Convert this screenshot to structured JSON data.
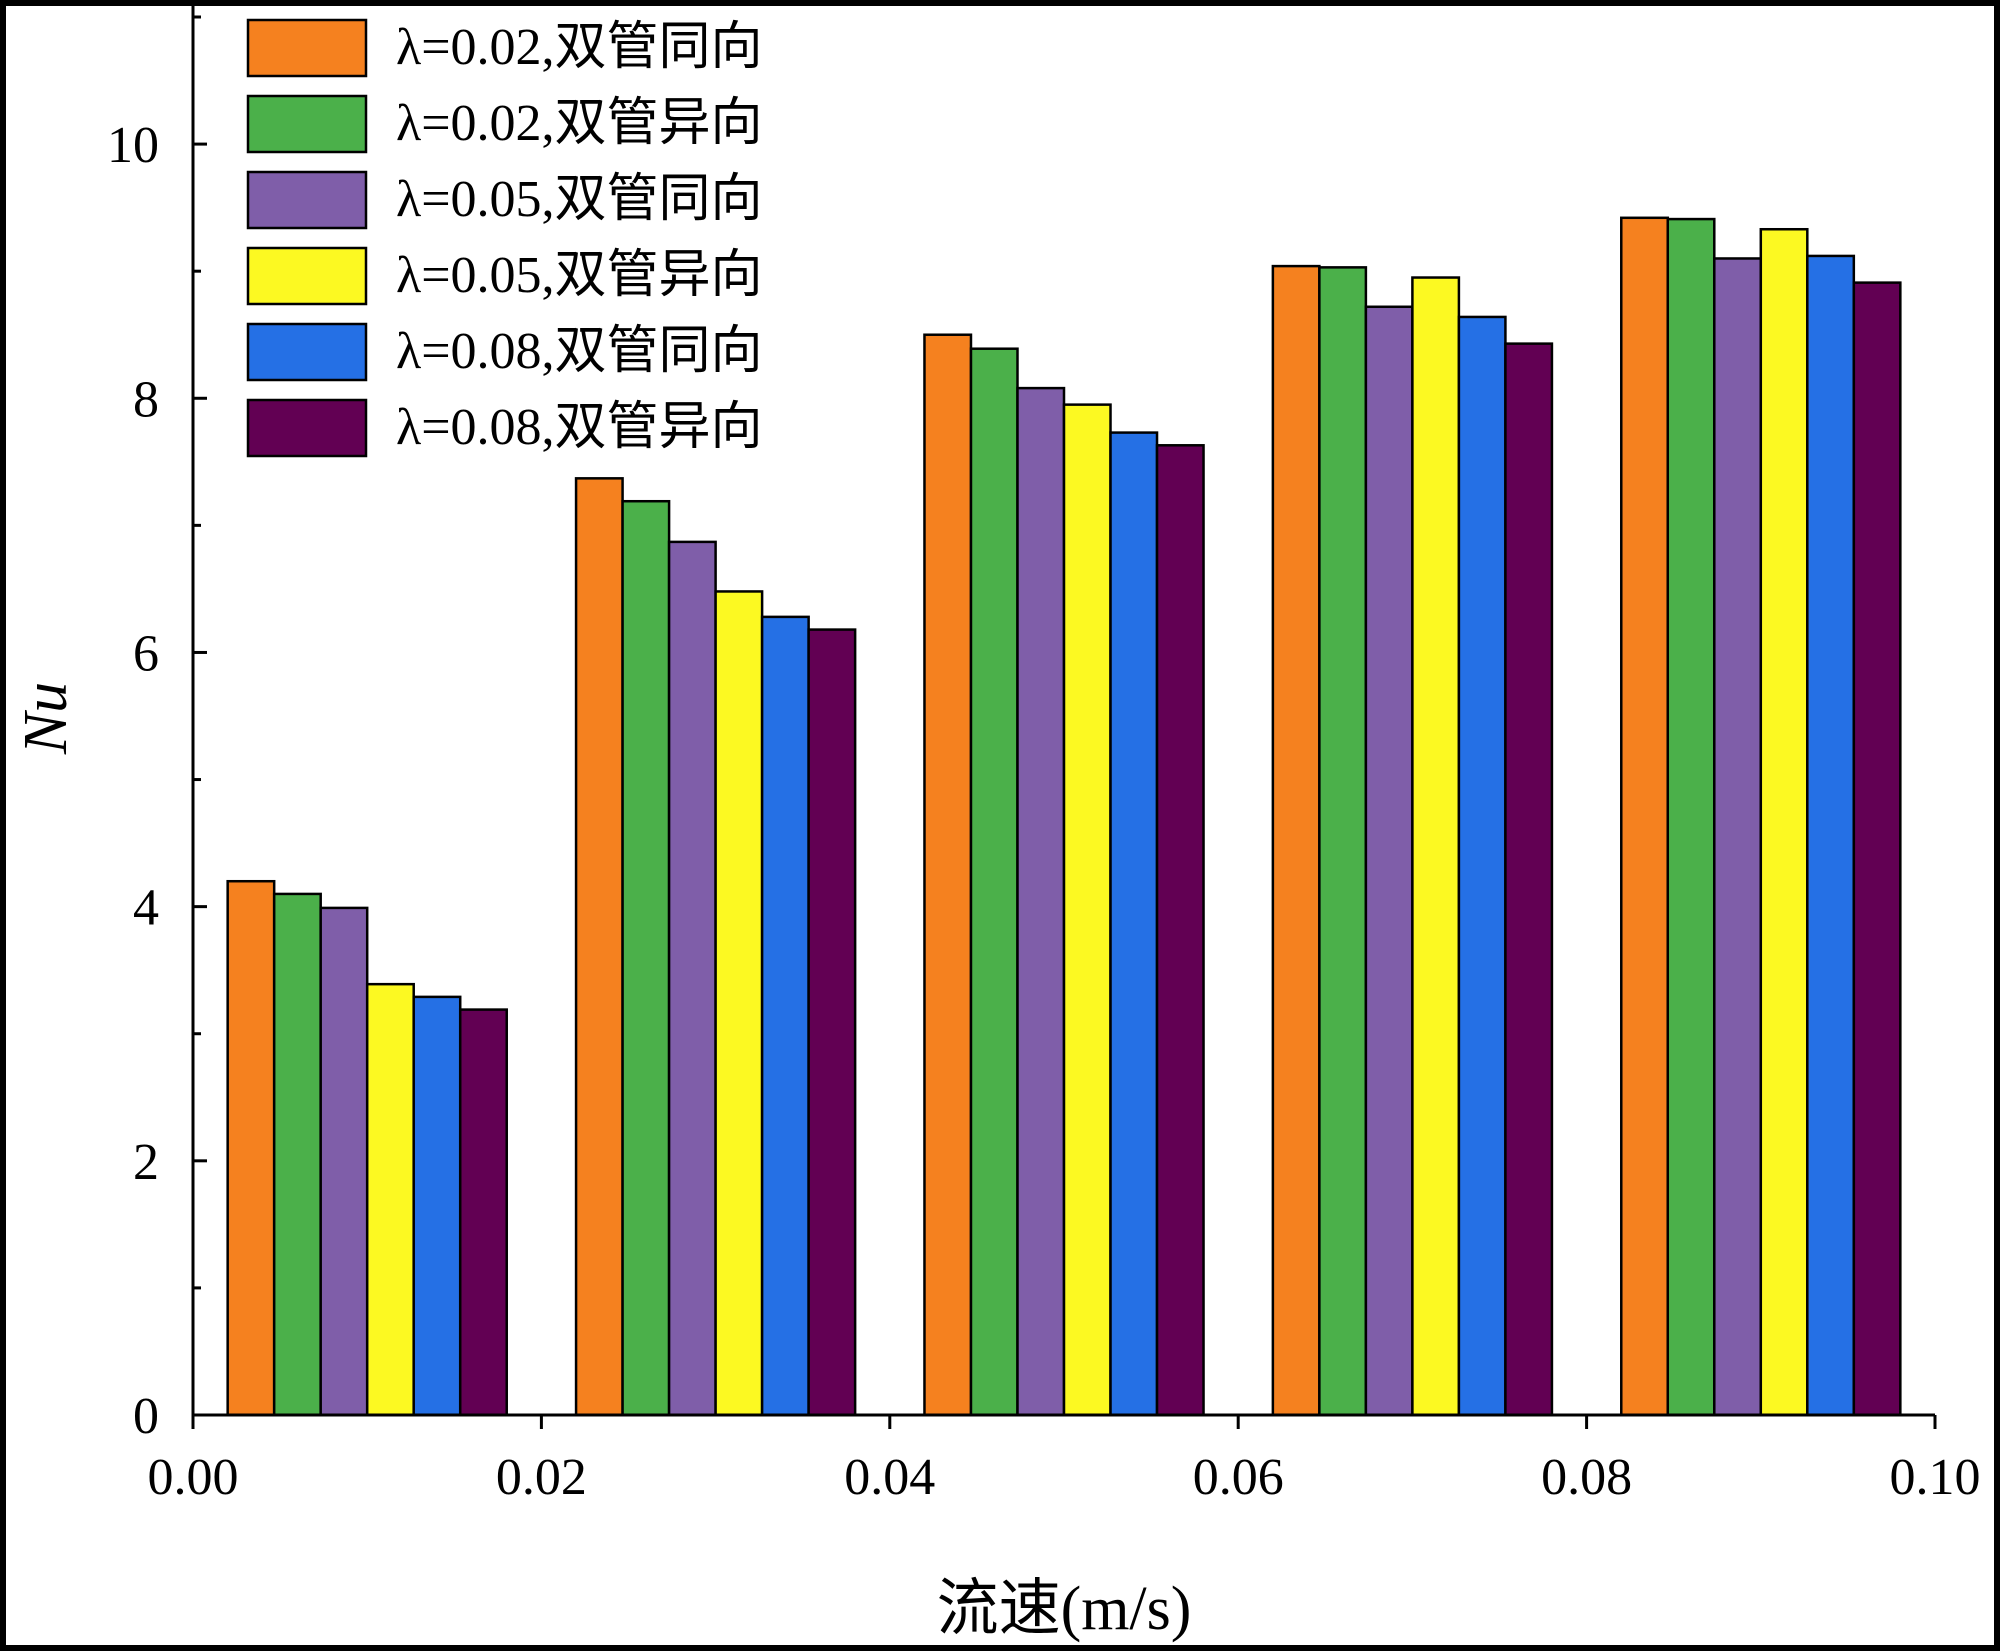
{
  "chart_data": {
    "type": "bar",
    "title": "",
    "xlabel": "流速(m/s)",
    "ylabel": "Nu",
    "x_ticks": [
      "0.00",
      "0.02",
      "0.04",
      "0.06",
      "0.08",
      "0.10"
    ],
    "x_tick_values": [
      0.0,
      0.02,
      0.04,
      0.06,
      0.08,
      0.1
    ],
    "xlim": [
      0.0,
      0.1
    ],
    "y_ticks": [
      "0",
      "2",
      "4",
      "6",
      "8",
      "10"
    ],
    "y_tick_values": [
      0,
      2,
      4,
      6,
      8,
      10
    ],
    "ylim": [
      0,
      11
    ],
    "grid": false,
    "legend_position": "top-left",
    "categories": [
      0.01,
      0.03,
      0.05,
      0.07,
      0.09
    ],
    "bar_width_data": 0.00267,
    "series": [
      {
        "name": "λ=0.02,双管同向",
        "color": "#F5811F",
        "values": [
          4.2,
          7.37,
          8.5,
          9.04,
          9.42
        ]
      },
      {
        "name": "λ=0.02,双管异向",
        "color": "#4BB04A",
        "values": [
          4.1,
          7.19,
          8.39,
          9.03,
          9.41
        ]
      },
      {
        "name": "λ=0.05,双管同向",
        "color": "#7F5EA9",
        "values": [
          3.99,
          6.87,
          8.08,
          8.72,
          9.1
        ]
      },
      {
        "name": "λ=0.05,双管异向",
        "color": "#FCF922",
        "values": [
          3.39,
          6.48,
          7.95,
          8.95,
          9.33
        ]
      },
      {
        "name": "λ=0.08,双管同向",
        "color": "#2570E5",
        "values": [
          3.29,
          6.28,
          7.73,
          8.64,
          9.12
        ]
      },
      {
        "name": "λ=0.08,双管异向",
        "color": "#620053",
        "values": [
          3.19,
          6.18,
          7.63,
          8.43,
          8.91
        ]
      }
    ]
  }
}
